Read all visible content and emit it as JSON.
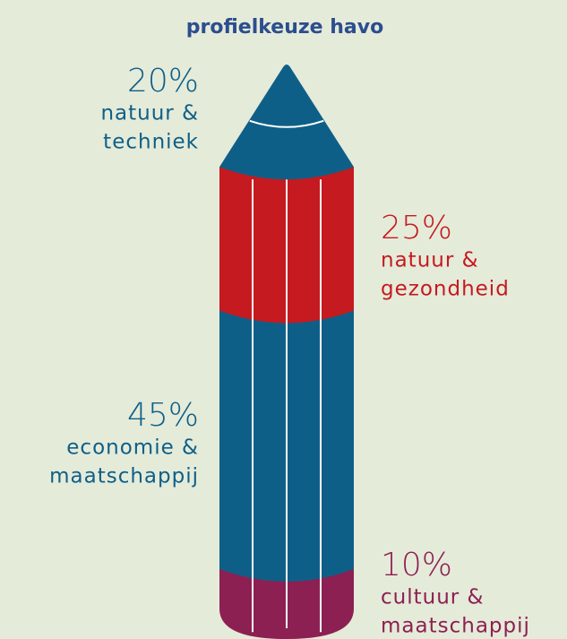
{
  "chart_data": {
    "type": "pencil",
    "title": "profielkeuze havo",
    "categories": [
      [
        "natuur &",
        "techniek"
      ],
      [
        "natuur &",
        "gezondheid"
      ],
      [
        "economie &",
        "maatschappij"
      ],
      [
        "cultuur &",
        "maatschappij"
      ]
    ],
    "values": [
      20,
      25,
      45,
      10
    ],
    "value_labels": [
      "20%",
      "25%",
      "45%",
      "10%"
    ],
    "colors": [
      "#0e5f88",
      "#c51a20",
      "#0e5f88",
      "#8c2052"
    ]
  }
}
